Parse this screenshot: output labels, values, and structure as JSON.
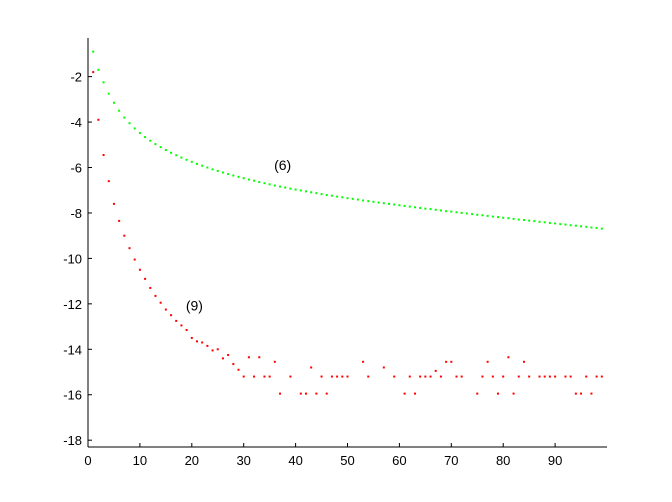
{
  "chart_data": {
    "type": "scatter",
    "xlim": [
      0,
      100
    ],
    "ylim": [
      -18.3,
      -0.3
    ],
    "xticks": [
      0,
      10,
      20,
      30,
      40,
      50,
      60,
      70,
      80,
      90
    ],
    "yticks": [
      -18,
      -16,
      -14,
      -12,
      -10,
      -8,
      -6,
      -4,
      -2
    ],
    "grid": false,
    "annotations": [
      {
        "text": "(6)",
        "x": 37.5,
        "y": -6.1
      },
      {
        "text": "(9)",
        "x": 20.5,
        "y": -12.3
      }
    ],
    "series": [
      {
        "color": "#00ff00",
        "points": [
          [
            1,
            -0.9
          ],
          [
            2,
            -1.7
          ],
          [
            3,
            -2.25
          ],
          [
            4,
            -2.75
          ],
          [
            5,
            -3.15
          ],
          [
            6,
            -3.5
          ],
          [
            7,
            -3.8
          ],
          [
            8,
            -4.05
          ],
          [
            9,
            -4.28
          ],
          [
            10,
            -4.48
          ],
          [
            11,
            -4.66
          ],
          [
            12,
            -4.82
          ],
          [
            13,
            -4.97
          ],
          [
            14,
            -5.1
          ],
          [
            15,
            -5.23
          ],
          [
            16,
            -5.35
          ],
          [
            17,
            -5.46
          ],
          [
            18,
            -5.56
          ],
          [
            19,
            -5.66
          ],
          [
            20,
            -5.75
          ],
          [
            21,
            -5.84
          ],
          [
            22,
            -5.92
          ],
          [
            23,
            -6.0
          ],
          [
            24,
            -6.08
          ],
          [
            25,
            -6.15
          ],
          [
            26,
            -6.22
          ],
          [
            27,
            -6.29
          ],
          [
            28,
            -6.35
          ],
          [
            29,
            -6.41
          ],
          [
            30,
            -6.47
          ],
          [
            31,
            -6.53
          ],
          [
            32,
            -6.58
          ],
          [
            33,
            -6.64
          ],
          [
            34,
            -6.69
          ],
          [
            35,
            -6.74
          ],
          [
            36,
            -6.79
          ],
          [
            37,
            -6.84
          ],
          [
            38,
            -6.88
          ],
          [
            39,
            -6.93
          ],
          [
            40,
            -6.97
          ],
          [
            41,
            -7.01
          ],
          [
            42,
            -7.05
          ],
          [
            43,
            -7.09
          ],
          [
            44,
            -7.13
          ],
          [
            45,
            -7.17
          ],
          [
            46,
            -7.21
          ],
          [
            47,
            -7.24
          ],
          [
            48,
            -7.28
          ],
          [
            49,
            -7.31
          ],
          [
            50,
            -7.35
          ],
          [
            51,
            -7.38
          ],
          [
            52,
            -7.41
          ],
          [
            53,
            -7.45
          ],
          [
            54,
            -7.48
          ],
          [
            55,
            -7.51
          ],
          [
            56,
            -7.54
          ],
          [
            57,
            -7.57
          ],
          [
            58,
            -7.6
          ],
          [
            59,
            -7.63
          ],
          [
            60,
            -7.66
          ],
          [
            61,
            -7.69
          ],
          [
            62,
            -7.72
          ],
          [
            63,
            -7.75
          ],
          [
            64,
            -7.78
          ],
          [
            65,
            -7.81
          ],
          [
            66,
            -7.83
          ],
          [
            67,
            -7.86
          ],
          [
            68,
            -7.89
          ],
          [
            69,
            -7.92
          ],
          [
            70,
            -7.94
          ],
          [
            71,
            -7.97
          ],
          [
            72,
            -8.0
          ],
          [
            73,
            -8.02
          ],
          [
            74,
            -8.05
          ],
          [
            75,
            -8.08
          ],
          [
            76,
            -8.1
          ],
          [
            77,
            -8.13
          ],
          [
            78,
            -8.16
          ],
          [
            79,
            -8.18
          ],
          [
            80,
            -8.21
          ],
          [
            81,
            -8.23
          ],
          [
            82,
            -8.26
          ],
          [
            83,
            -8.29
          ],
          [
            84,
            -8.31
          ],
          [
            85,
            -8.34
          ],
          [
            86,
            -8.36
          ],
          [
            87,
            -8.39
          ],
          [
            88,
            -8.41
          ],
          [
            89,
            -8.44
          ],
          [
            90,
            -8.46
          ],
          [
            91,
            -8.49
          ],
          [
            92,
            -8.51
          ],
          [
            93,
            -8.54
          ],
          [
            94,
            -8.56
          ],
          [
            95,
            -8.59
          ],
          [
            96,
            -8.61
          ],
          [
            97,
            -8.64
          ],
          [
            98,
            -8.66
          ],
          [
            99,
            -8.69
          ]
        ]
      },
      {
        "color": "#ff0000",
        "points": [
          [
            1,
            -1.8
          ],
          [
            2,
            -3.9
          ],
          [
            3,
            -5.45
          ],
          [
            4,
            -6.6
          ],
          [
            5,
            -7.6
          ],
          [
            6,
            -8.35
          ],
          [
            7,
            -9.0
          ],
          [
            8,
            -9.55
          ],
          [
            9,
            -10.05
          ],
          [
            10,
            -10.5
          ],
          [
            11,
            -10.9
          ],
          [
            12,
            -11.3
          ],
          [
            13,
            -11.65
          ],
          [
            14,
            -11.95
          ],
          [
            15,
            -12.25
          ],
          [
            16,
            -12.5
          ],
          [
            17,
            -12.75
          ],
          [
            18,
            -12.95
          ],
          [
            19,
            -13.15
          ],
          [
            20,
            -13.5
          ],
          [
            21,
            -13.65
          ],
          [
            22,
            -13.7
          ],
          [
            23,
            -13.85
          ],
          [
            24,
            -14.05
          ],
          [
            25,
            -14.0
          ],
          [
            26,
            -14.4
          ],
          [
            27,
            -14.25
          ],
          [
            28,
            -14.65
          ],
          [
            29,
            -14.9
          ],
          [
            30,
            -15.2
          ],
          [
            31,
            -14.35
          ],
          [
            32,
            -15.2
          ],
          [
            33,
            -14.35
          ],
          [
            34,
            -15.2
          ],
          [
            35,
            -15.2
          ],
          [
            36,
            -14.55
          ],
          [
            37,
            -15.95
          ],
          [
            39,
            -15.2
          ],
          [
            41,
            -15.95
          ],
          [
            42,
            -15.95
          ],
          [
            43,
            -14.8
          ],
          [
            44,
            -15.95
          ],
          [
            45,
            -15.2
          ],
          [
            46,
            -15.95
          ],
          [
            47,
            -15.2
          ],
          [
            48,
            -15.2
          ],
          [
            49,
            -15.2
          ],
          [
            50,
            -15.2
          ],
          [
            53,
            -14.55
          ],
          [
            54,
            -15.2
          ],
          [
            57,
            -14.8
          ],
          [
            59,
            -15.2
          ],
          [
            61,
            -15.95
          ],
          [
            62,
            -15.2
          ],
          [
            63,
            -15.95
          ],
          [
            64,
            -15.2
          ],
          [
            65,
            -15.2
          ],
          [
            66,
            -15.2
          ],
          [
            67,
            -14.95
          ],
          [
            68,
            -15.2
          ],
          [
            69,
            -14.55
          ],
          [
            70,
            -14.55
          ],
          [
            71,
            -15.2
          ],
          [
            72,
            -15.2
          ],
          [
            75,
            -15.95
          ],
          [
            76,
            -15.2
          ],
          [
            77,
            -14.55
          ],
          [
            78,
            -15.2
          ],
          [
            79,
            -15.95
          ],
          [
            80,
            -15.2
          ],
          [
            81,
            -14.35
          ],
          [
            82,
            -15.95
          ],
          [
            83,
            -15.2
          ],
          [
            84,
            -14.55
          ],
          [
            85,
            -15.2
          ],
          [
            87,
            -15.2
          ],
          [
            88,
            -15.2
          ],
          [
            89,
            -15.2
          ],
          [
            90,
            -15.2
          ],
          [
            92,
            -15.2
          ],
          [
            93,
            -15.2
          ],
          [
            94,
            -15.95
          ],
          [
            95,
            -15.95
          ],
          [
            96,
            -15.2
          ],
          [
            97,
            -15.95
          ],
          [
            98,
            -15.2
          ],
          [
            99,
            -15.2
          ]
        ]
      }
    ]
  }
}
